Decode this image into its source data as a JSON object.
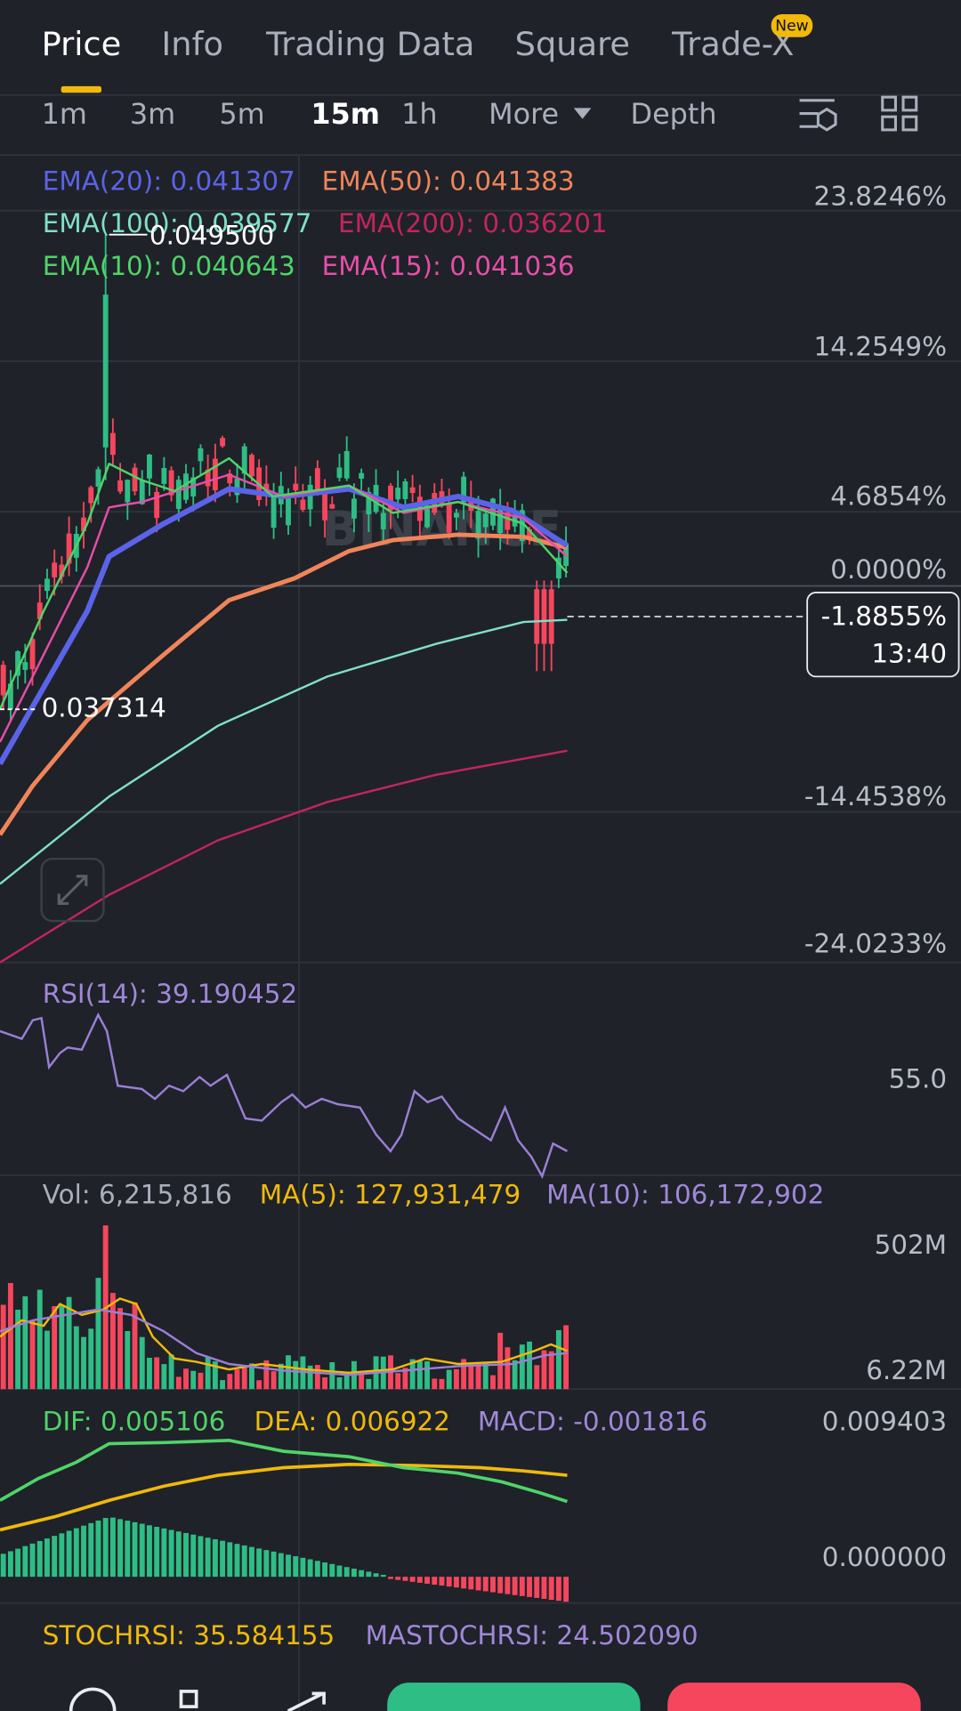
{
  "tabs": [
    "Price",
    "Info",
    "Trading Data",
    "Square",
    "Trade-X"
  ],
  "badge": "New",
  "intervals": [
    "1m",
    "3m",
    "5m",
    "15m",
    "1h"
  ],
  "more": "More",
  "depth": "Depth",
  "ema": [
    {
      "label": "EMA(20): 0.041307",
      "color": "#5b63e8"
    },
    {
      "label": "EMA(50): 0.041383",
      "color": "#f0855a"
    },
    {
      "label": "EMA(100): 0.039577",
      "color": "#7fe0c6"
    },
    {
      "label": "EMA(200): 0.036201",
      "color": "#c2255c"
    },
    {
      "label": "EMA(10): 0.040643",
      "color": "#4fd468"
    },
    {
      "label": "EMA(15): 0.041036",
      "color": "#e64ea8"
    }
  ],
  "price_axis": [
    "23.8246%",
    "14.2549%",
    "4.6854%",
    "0.0000%",
    "-14.4538%",
    "-24.0233%"
  ],
  "current": {
    "change": "-1.8855%",
    "countdown": "13:40"
  },
  "high": "0.049500",
  "low": "0.037314",
  "watermark": "BINANCE",
  "rsi": {
    "label": "RSI(14): 39.190452",
    "axis": "55.0"
  },
  "volume": {
    "labels": [
      "Vol: 6,215,816",
      "MA(5): 127,931,479",
      "MA(10): 106,172,902"
    ],
    "axis": [
      "502M",
      "6.22M"
    ]
  },
  "macd": {
    "labels": [
      "DIF: 0.005106",
      "DEA: 0.006922",
      "MACD: -0.001816"
    ],
    "axis": [
      "0.009403",
      "0.000000"
    ]
  },
  "stochrsi": {
    "labels": [
      "STOCHRSI: 35.584155",
      "MASTOCHRSI: 24.502090"
    ]
  }
}
